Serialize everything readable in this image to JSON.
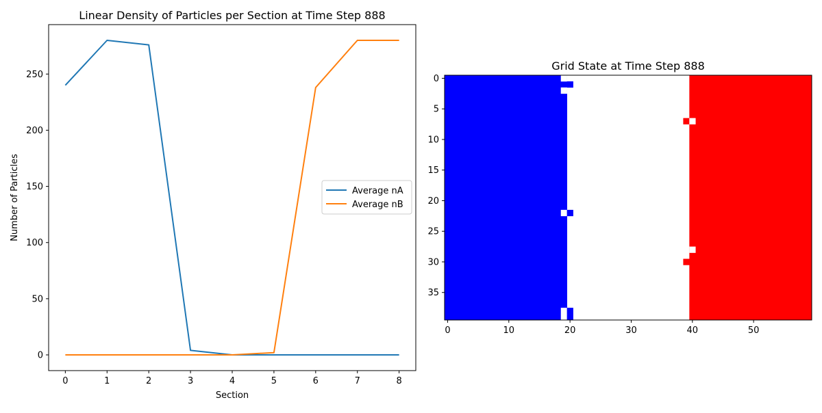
{
  "chart_data": [
    {
      "type": "line",
      "title": "Linear Density of Particles per Section at Time Step 888",
      "xlabel": "Section",
      "ylabel": "Number of Particles",
      "x": [
        0,
        1,
        2,
        3,
        4,
        5,
        6,
        7,
        8
      ],
      "xlim": [
        -0.4,
        8.4
      ],
      "ylim": [
        -14,
        294
      ],
      "xticks": [
        0,
        1,
        2,
        3,
        4,
        5,
        6,
        7,
        8
      ],
      "yticks": [
        0,
        50,
        100,
        150,
        200,
        250
      ],
      "series": [
        {
          "name": "Average nA",
          "color": "#1f77b4",
          "values": [
            240,
            280,
            276,
            4,
            0,
            0,
            0,
            0,
            0
          ]
        },
        {
          "name": "Average nB",
          "color": "#ff7f0e",
          "values": [
            0,
            0,
            0,
            0,
            0,
            2,
            238,
            280,
            280
          ]
        }
      ],
      "legend": "center-right",
      "grid": false
    },
    {
      "type": "heatmap",
      "title": "Grid State at Time Step 888",
      "rows": 40,
      "cols": 60,
      "xticks": [
        0,
        10,
        20,
        30,
        40,
        50
      ],
      "yticks": [
        0,
        5,
        10,
        15,
        20,
        25,
        30,
        35
      ],
      "colors": {
        "A": "#0000ff",
        "B": "#ff0000",
        "empty": "#ffffff"
      },
      "regions": [
        {
          "state": "A",
          "cols": [
            0,
            19
          ],
          "rows": [
            0,
            39
          ]
        },
        {
          "state": "B",
          "cols": [
            40,
            59
          ],
          "rows": [
            0,
            39
          ]
        }
      ],
      "cells": [
        {
          "row": 0,
          "col": 19,
          "state": "empty"
        },
        {
          "row": 1,
          "col": 20,
          "state": "A"
        },
        {
          "row": 2,
          "col": 19,
          "state": "empty"
        },
        {
          "row": 7,
          "col": 39,
          "state": "B"
        },
        {
          "row": 7,
          "col": 40,
          "state": "empty"
        },
        {
          "row": 22,
          "col": 19,
          "state": "empty"
        },
        {
          "row": 22,
          "col": 20,
          "state": "A"
        },
        {
          "row": 28,
          "col": 40,
          "state": "empty"
        },
        {
          "row": 30,
          "col": 39,
          "state": "B"
        },
        {
          "row": 38,
          "col": 19,
          "state": "empty"
        },
        {
          "row": 38,
          "col": 20,
          "state": "A"
        },
        {
          "row": 39,
          "col": 19,
          "state": "empty"
        },
        {
          "row": 39,
          "col": 20,
          "state": "A"
        }
      ],
      "grid": false
    }
  ]
}
